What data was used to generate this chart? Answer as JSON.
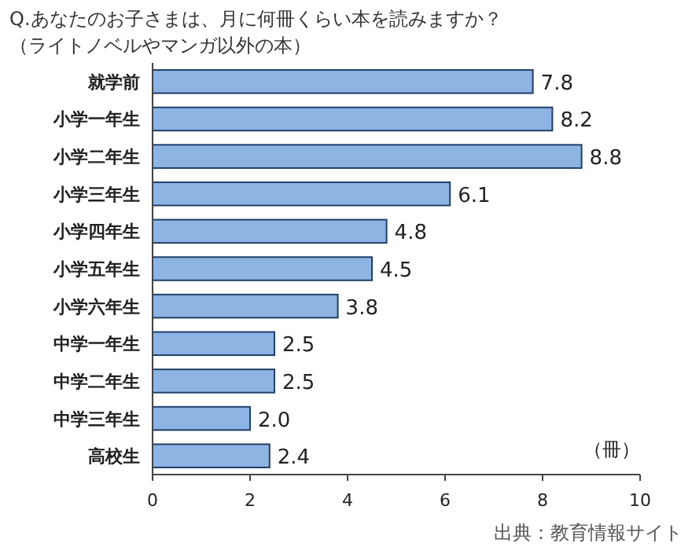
{
  "chart_data": {
    "type": "bar",
    "orientation": "horizontal",
    "title": "Q.あなたのお子さまは、月に何冊くらい本を読みますか？",
    "subtitle": "（ライトノベルやマンガ以外の本）",
    "categories": [
      "就学前",
      "小学一年生",
      "小学二年生",
      "小学三年生",
      "小学四年生",
      "小学五年生",
      "小学六年生",
      "中学一年生",
      "中学二年生",
      "中学三年生",
      "高校生"
    ],
    "values": [
      7.8,
      8.2,
      8.8,
      6.1,
      4.8,
      4.5,
      3.8,
      2.5,
      2.5,
      2.0,
      2.4
    ],
    "color": "#8db4e2",
    "xlim": [
      0,
      10
    ],
    "xticks": [
      0,
      2,
      4,
      6,
      8,
      10
    ],
    "xlabel": "（冊）",
    "value_labels": [
      "7.8",
      "8.2",
      "8.8",
      "6.1",
      "4.8",
      "4.5",
      "3.8",
      "2.5",
      "2.5",
      "2.0",
      "2.4"
    ],
    "annotations": [
      "出典：教育情報サイト"
    ]
  }
}
